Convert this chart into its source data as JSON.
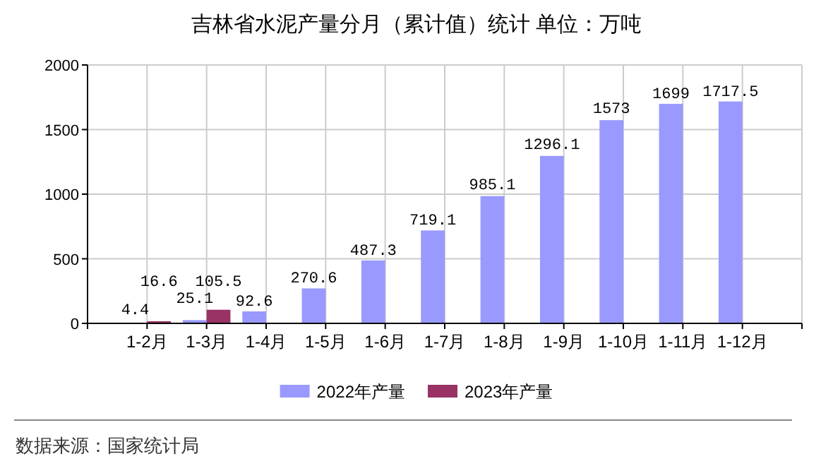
{
  "chart_data": {
    "type": "bar",
    "title": "吉林省水泥产量分月（累计值）统计 单位：万吨",
    "categories": [
      "1-2月",
      "1-3月",
      "1-4月",
      "1-5月",
      "1-6月",
      "1-7月",
      "1-8月",
      "1-9月",
      "1-10月",
      "1-11月",
      "1-12月"
    ],
    "series": [
      {
        "name": "2022年产量",
        "color": "#9999ff",
        "values": [
          4.4,
          25.1,
          92.6,
          270.6,
          487.3,
          719.1,
          985.1,
          1296.1,
          1573,
          1699,
          1717.5
        ]
      },
      {
        "name": "2023年产量",
        "color": "#993366",
        "values": [
          16.6,
          105.5,
          null,
          null,
          null,
          null,
          null,
          null,
          null,
          null,
          null
        ]
      }
    ],
    "ylim": [
      0,
      2000
    ],
    "yticks": [
      0,
      500,
      1000,
      1500,
      2000
    ],
    "grid": true,
    "legend": "bottom",
    "data_labels": true,
    "annotations": [
      "数据来源：国家统计局"
    ]
  }
}
